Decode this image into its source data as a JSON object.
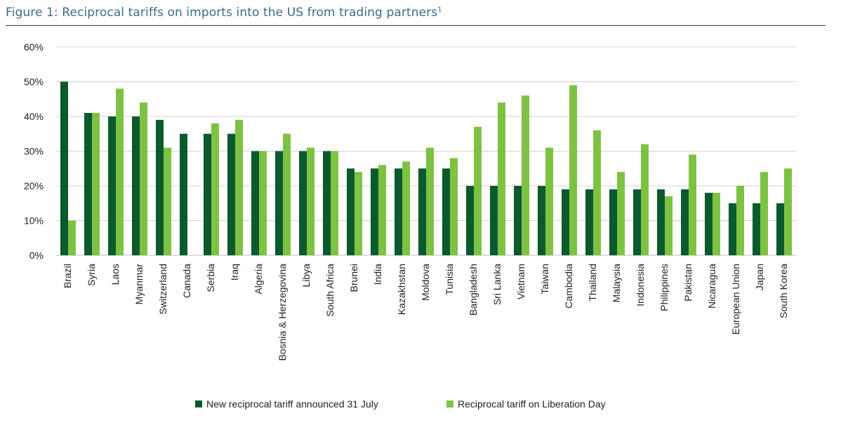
{
  "title": {
    "text": "Figure 1: Reciprocal tariffs on imports into the US from trading partners",
    "footnote": "1"
  },
  "colors": {
    "series_new": "#0b5a2e",
    "series_liberation": "#7dc242",
    "grid": "#d0d0d0",
    "axis_text": "#222222",
    "title": "#3a6d86"
  },
  "chart_data": {
    "type": "bar",
    "title": "Figure 1: Reciprocal tariffs on imports into the US from trading partners",
    "xlabel": "",
    "ylabel": "",
    "ylim": [
      0,
      60
    ],
    "yticks": [
      "0%",
      "10%",
      "20%",
      "30%",
      "40%",
      "50%",
      "60%"
    ],
    "grid": true,
    "legend_position": "bottom",
    "categories": [
      "Brazil",
      "Syria",
      "Laos",
      "Myanmar",
      "Switzerland",
      "Canada",
      "Serbia",
      "Iraq",
      "Algeria",
      "Bosnia & Herzegovina",
      "Libya",
      "South Africa",
      "Brunei",
      "India",
      "Kazakhstan",
      "Moldova",
      "Tunisia",
      "Bangladesh",
      "Sri Lanka",
      "Vietnam",
      "Taiwan",
      "Cambodia",
      "Thailand",
      "Malaysia",
      "Indonesia",
      "Philippines",
      "Pakistan",
      "Nicaragua",
      "European Union",
      "Japan",
      "South Korea"
    ],
    "series": [
      {
        "name": "New reciprocal tariff announced 31 July",
        "color": "#0b5a2e",
        "values": [
          50,
          41,
          40,
          40,
          39,
          35,
          35,
          35,
          30,
          30,
          30,
          30,
          25,
          25,
          25,
          25,
          25,
          20,
          20,
          20,
          20,
          19,
          19,
          19,
          19,
          19,
          19,
          18,
          15,
          15,
          15
        ]
      },
      {
        "name": "Reciprocal tariff on Liberation Day",
        "color": "#7dc242",
        "values": [
          10,
          41,
          48,
          44,
          31,
          null,
          38,
          39,
          30,
          35,
          31,
          30,
          24,
          26,
          27,
          31,
          28,
          37,
          44,
          46,
          31,
          49,
          36,
          24,
          32,
          17,
          29,
          18,
          20,
          24,
          25
        ]
      }
    ]
  }
}
